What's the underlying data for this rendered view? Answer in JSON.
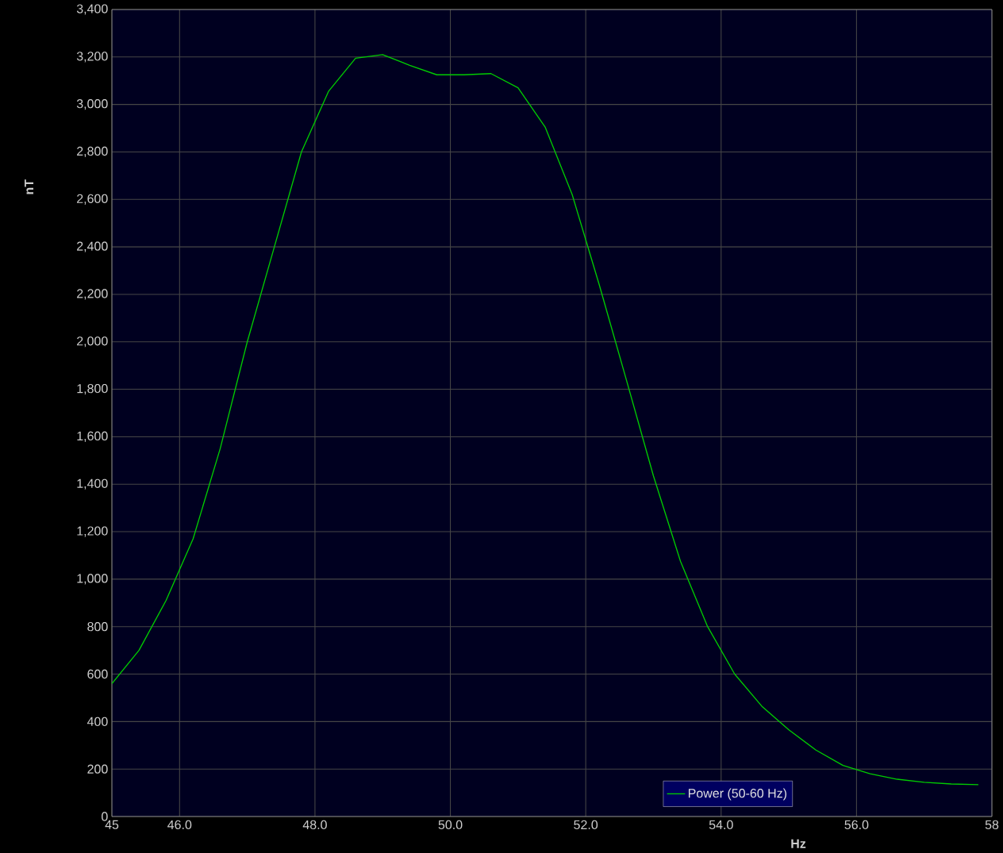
{
  "chart_data": {
    "type": "line",
    "xlabel": "Hz",
    "ylabel": "nT",
    "x": [
      45,
      45.4,
      45.8,
      46.2,
      46.6,
      47.0,
      47.4,
      47.8,
      48.2,
      48.6,
      49.0,
      49.4,
      49.8,
      50.2,
      50.6,
      51.0,
      51.4,
      51.8,
      52.2,
      52.6,
      53.0,
      53.4,
      53.8,
      54.2,
      54.6,
      55.0,
      55.4,
      55.8,
      56.2,
      56.6,
      57.0,
      57.4,
      57.8
    ],
    "series": [
      {
        "name": "Power (50-60 Hz)",
        "color": "#00cc00",
        "values": [
          560,
          700,
          910,
          1170,
          1550,
          2000,
          2400,
          2800,
          3055,
          3195,
          3210,
          3165,
          3125,
          3125,
          3130,
          3070,
          2905,
          2620,
          2240,
          1840,
          1435,
          1075,
          800,
          600,
          465,
          365,
          280,
          215,
          180,
          157,
          144,
          137,
          134
        ]
      }
    ],
    "xlim": [
      45,
      58
    ],
    "ylim": [
      0,
      3400
    ],
    "xticks": [
      45,
      {
        "value": 46,
        "label": "46.0"
      },
      {
        "value": 48,
        "label": "48.0"
      },
      {
        "value": 50,
        "label": "50.0"
      },
      {
        "value": 52,
        "label": "52.0"
      },
      {
        "value": 54,
        "label": "54.0"
      },
      {
        "value": 56,
        "label": "56.0"
      },
      58
    ],
    "yticks": [
      0,
      200,
      400,
      600,
      800,
      {
        "value": 1000,
        "label": "1,000"
      },
      {
        "value": 1200,
        "label": "1,200"
      },
      {
        "value": 1400,
        "label": "1,400"
      },
      {
        "value": 1600,
        "label": "1,600"
      },
      {
        "value": 1800,
        "label": "1,800"
      },
      {
        "value": 2000,
        "label": "2,000"
      },
      {
        "value": 2200,
        "label": "2,200"
      },
      {
        "value": 2400,
        "label": "2,400"
      },
      {
        "value": 2600,
        "label": "2,600"
      },
      {
        "value": 2800,
        "label": "2,800"
      },
      {
        "value": 3000,
        "label": "3,000"
      },
      {
        "value": 3200,
        "label": "3,200"
      },
      {
        "value": 3400,
        "label": "3,400"
      }
    ],
    "grid": true,
    "legend": "bottom",
    "marker": "none",
    "line_style": "solid"
  }
}
